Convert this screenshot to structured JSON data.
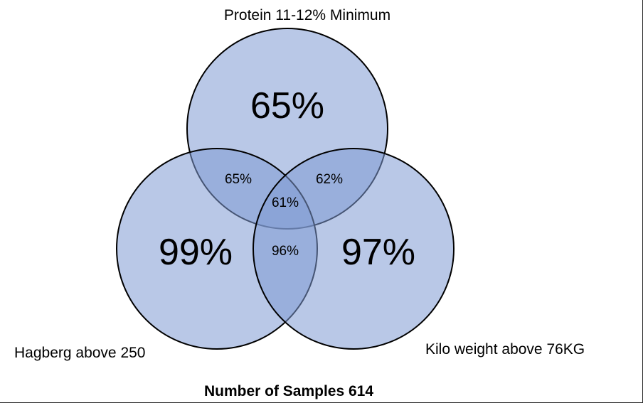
{
  "diagram": {
    "type": "venn-3",
    "sets": [
      {
        "id": "protein",
        "label": "Protein 11-12% Minimum",
        "only_value": "65%"
      },
      {
        "id": "hagberg",
        "label": "Hagberg above 250",
        "only_value": "99%"
      },
      {
        "id": "kilo",
        "label": "Kilo weight above 76KG",
        "only_value": "97%"
      }
    ],
    "intersections": {
      "protein_hagberg": "65%",
      "protein_kilo": "62%",
      "hagberg_kilo": "96%",
      "all_three": "61%"
    },
    "footer": "Number of Samples 614",
    "colors": {
      "fill": "#7f9ad4",
      "stroke": "#000000"
    }
  }
}
